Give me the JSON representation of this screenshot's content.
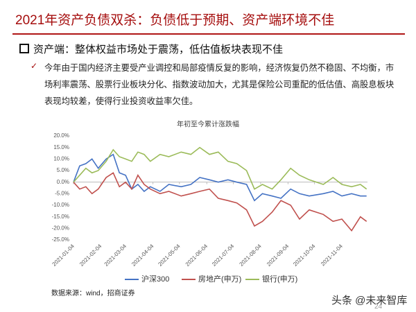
{
  "header": {
    "title": "2021年资产负债双杀：负债低于预期、资产端环境不佳"
  },
  "section": {
    "heading": "资产端：整体权益市场处于震荡，低估值板块表现不佳"
  },
  "bullet": "今年由于国内经济主要受产业调控和局部疫情反复的影响，经济恢复仍然不稳固、不均衡，市场利率震荡、股票行业板块分化、指数波动加大，尤其是保险公司重配的低估值、高股息板块表现均较差，使得行业投资收益率欠佳。",
  "source": "数据来源：wind，招商证券",
  "watermark": "头条 @未来智库",
  "page_number": "24",
  "chart_data": {
    "type": "line",
    "title": "年初至今累计涨跌幅",
    "x": [
      "2021-01-04",
      "2021-01-11",
      "2021-01-18",
      "2021-01-25",
      "2021-02-01",
      "2021-02-10",
      "2021-02-18",
      "2021-02-25",
      "2021-03-04",
      "2021-03-11",
      "2021-03-18",
      "2021-03-25",
      "2021-04-01",
      "2021-04-12",
      "2021-04-22",
      "2021-05-06",
      "2021-05-17",
      "2021-05-27",
      "2021-06-07",
      "2021-06-17",
      "2021-06-28",
      "2021-07-08",
      "2021-07-19",
      "2021-07-28",
      "2021-08-06",
      "2021-08-17",
      "2021-08-27",
      "2021-09-07",
      "2021-09-17",
      "2021-09-28",
      "2021-10-14",
      "2021-10-25",
      "2021-11-04",
      "2021-11-15",
      "2021-11-25",
      "2021-12-02"
    ],
    "series": [
      {
        "name": "沪深300",
        "color": "#4472c4",
        "values": [
          0,
          7,
          8,
          10,
          6,
          10,
          12,
          4,
          3,
          -3,
          -1,
          -4,
          -2,
          -4,
          -1,
          -2,
          -1,
          2,
          1,
          0,
          1,
          0,
          -1,
          -8,
          -5,
          -6,
          -7,
          -3,
          -5,
          -6,
          -5,
          -4,
          -6,
          -5,
          -6,
          -6
        ]
      },
      {
        "name": "房地产(申万)",
        "color": "#c0504d",
        "values": [
          0,
          -3,
          -2,
          -5,
          -3,
          2,
          4,
          -2,
          0,
          -3,
          3,
          -1,
          -3,
          -5,
          -4,
          -6,
          -5,
          -4,
          -3,
          -7,
          -8,
          -9,
          -12,
          -19,
          -17,
          -13,
          -8,
          -10,
          -16,
          -12,
          -14,
          -17,
          -16,
          -21,
          -15,
          -17
        ]
      },
      {
        "name": "银行(申万)",
        "color": "#9bbb59",
        "values": [
          0,
          3,
          6,
          4,
          5,
          9,
          14,
          11,
          10,
          9,
          13,
          12,
          9,
          12,
          11,
          13,
          12,
          15,
          12,
          13,
          9,
          8,
          5,
          -3,
          -1,
          -3,
          1,
          6,
          3,
          1,
          -1,
          2,
          -1,
          -2,
          -1,
          -3
        ]
      }
    ],
    "xlim": [
      "2021-01-04",
      "2021-12-03"
    ],
    "xticks": [
      "2021-01-04",
      "2021-02-04",
      "2021-03-04",
      "2021-04-04",
      "2021-05-04",
      "2021-06-04",
      "2021-07-04",
      "2021-08-04",
      "2021-09-04",
      "2021-10-04",
      "2021-11-04"
    ],
    "ylim": [
      -25,
      20
    ],
    "yticks": [
      {
        "value": 20,
        "label": "20.0%"
      },
      {
        "value": 15,
        "label": "15.0%"
      },
      {
        "value": 10,
        "label": "10.0%"
      },
      {
        "value": 5,
        "label": "5.0%"
      },
      {
        "value": 0,
        "label": "0.0%"
      },
      {
        "value": -5,
        "label": "-5.0%"
      },
      {
        "value": -10,
        "label": "-10.0%"
      },
      {
        "value": -15,
        "label": "-15.0%"
      },
      {
        "value": -20,
        "label": "-20.0%"
      },
      {
        "value": -25,
        "label": "-25.0%"
      }
    ],
    "grid": false,
    "legend": "bottom"
  }
}
